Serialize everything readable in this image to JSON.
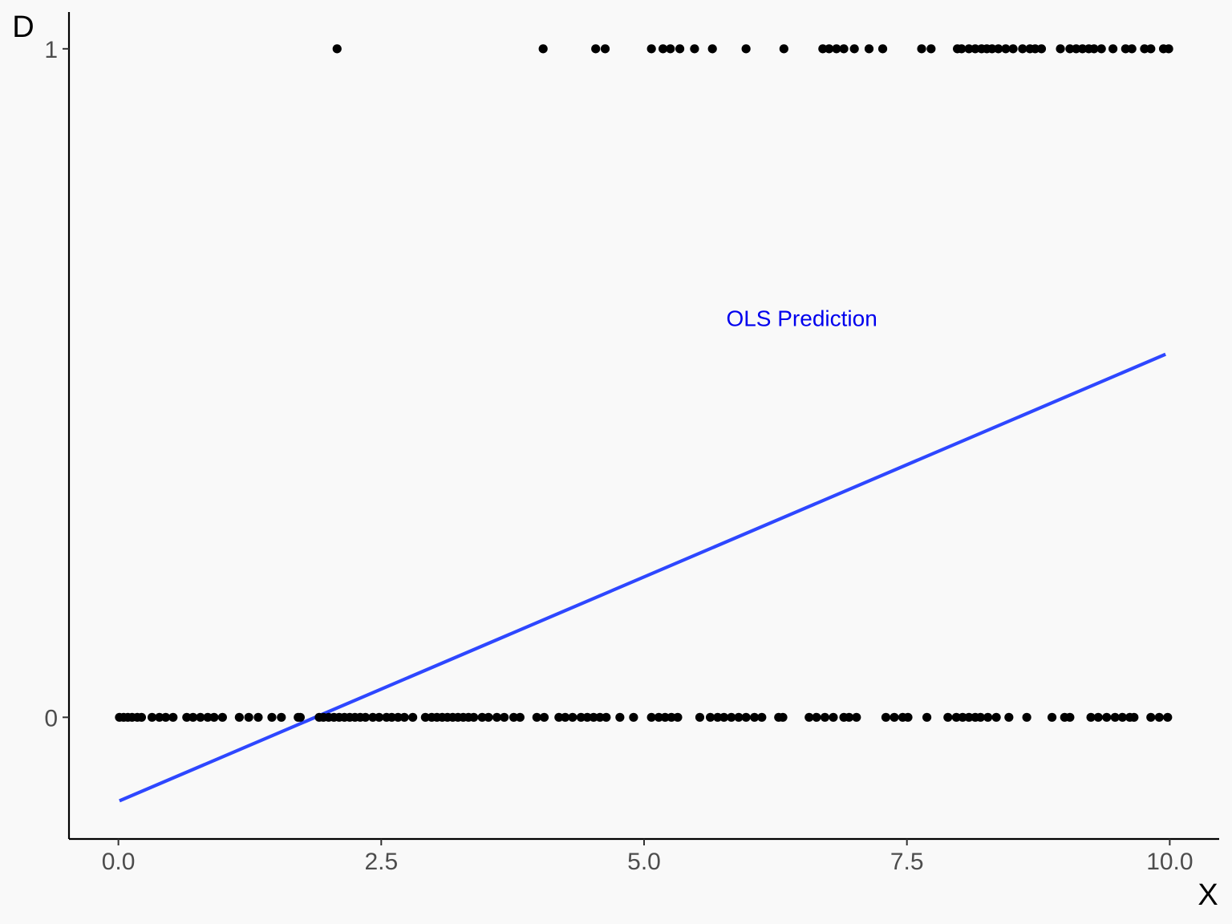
{
  "chart_data": {
    "type": "scatter",
    "title": "",
    "xlabel": "X",
    "ylabel": "D",
    "xlim": [
      -0.47,
      10.47
    ],
    "ylim": [
      -0.182,
      1.055
    ],
    "x_ticks": [
      0,
      2.5,
      5,
      7.5,
      10
    ],
    "x_tick_labels": [
      "0.0",
      "2.5",
      "5.0",
      "7.5",
      "10.0"
    ],
    "y_ticks": [
      0,
      1
    ],
    "y_tick_labels": [
      "0",
      "1"
    ],
    "grid": false,
    "legend": "none",
    "series": [
      {
        "type": "scatter",
        "color": "#000000",
        "points_y1_x": [
          2.08,
          4.04,
          4.54,
          4.63,
          5.07,
          5.18,
          5.25,
          5.34,
          5.48,
          5.65,
          5.97,
          6.33,
          6.7,
          6.76,
          6.83,
          6.9,
          7.0,
          7.14,
          7.27,
          7.64,
          7.73,
          7.98,
          8.02,
          8.09,
          8.15,
          8.21,
          8.26,
          8.31,
          8.37,
          8.44,
          8.51,
          8.6,
          8.67,
          8.72,
          8.78,
          8.96,
          9.05,
          9.11,
          9.17,
          9.23,
          9.28,
          9.35,
          9.46,
          9.58,
          9.64,
          9.76,
          9.82,
          9.94,
          9.99
        ],
        "points_y0_x": [
          0.01,
          0.05,
          0.09,
          0.13,
          0.18,
          0.22,
          0.32,
          0.39,
          0.45,
          0.52,
          0.65,
          0.71,
          0.78,
          0.85,
          0.91,
          0.99,
          1.15,
          1.24,
          1.33,
          1.46,
          1.55,
          1.71,
          1.73,
          1.91,
          1.95,
          2.0,
          2.05,
          2.1,
          2.15,
          2.2,
          2.25,
          2.3,
          2.35,
          2.42,
          2.48,
          2.55,
          2.6,
          2.66,
          2.72,
          2.8,
          2.92,
          2.98,
          3.03,
          3.08,
          3.13,
          3.18,
          3.23,
          3.28,
          3.33,
          3.38,
          3.46,
          3.52,
          3.6,
          3.67,
          3.76,
          3.82,
          3.98,
          4.05,
          4.19,
          4.25,
          4.32,
          4.4,
          4.46,
          4.52,
          4.58,
          4.64,
          4.77,
          4.9,
          5.07,
          5.14,
          5.2,
          5.26,
          5.32,
          5.53,
          5.63,
          5.7,
          5.76,
          5.83,
          5.9,
          5.97,
          6.05,
          6.12,
          6.28,
          6.32,
          6.57,
          6.64,
          6.72,
          6.8,
          6.9,
          6.95,
          7.02,
          7.3,
          7.38,
          7.46,
          7.51,
          7.69,
          7.89,
          7.97,
          8.03,
          8.09,
          8.15,
          8.2,
          8.27,
          8.35,
          8.47,
          8.64,
          8.88,
          9.0,
          9.05,
          9.25,
          9.32,
          9.4,
          9.48,
          9.55,
          9.62,
          9.66,
          9.82,
          9.9,
          9.98
        ]
      },
      {
        "type": "line",
        "name": "OLS Prediction",
        "color": "#2e47ff",
        "x": [
          0.01,
          9.96
        ],
        "y": [
          -0.125,
          0.543
        ]
      }
    ],
    "annotations": [
      {
        "text": "OLS Prediction",
        "x": 6.5,
        "y": 0.597,
        "color": "#0000ee"
      }
    ]
  }
}
